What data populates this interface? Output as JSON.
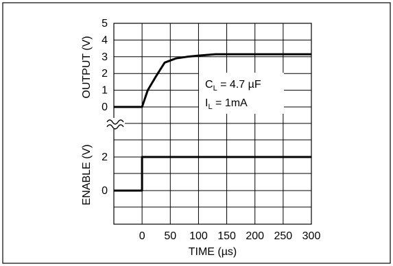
{
  "chart_data": {
    "type": "line",
    "xlabel": "TIME (µs)",
    "x_ticks": [
      "0",
      "50",
      "100",
      "150",
      "200",
      "250",
      "300"
    ],
    "xlim": [
      -50,
      300
    ],
    "panels": [
      {
        "ylabel": "OUTPUT (V)",
        "y_ticks": [
          "5",
          "4",
          "3",
          "2",
          "1",
          "0"
        ],
        "ylim": [
          0,
          5
        ],
        "series": [
          {
            "x": [
              -50,
              0,
              10,
              25,
              40,
              60,
              80,
              100,
              130,
              300
            ],
            "y": [
              0,
              0,
              1.0,
              1.85,
              2.65,
              2.9,
              3.0,
              3.07,
              3.15,
              3.15
            ]
          }
        ],
        "annotations": {
          "cl_main": "C",
          "cl_sub": "L",
          "cl_rest": " = 4.7 µF",
          "il_main": "I",
          "il_sub": "L",
          "il_rest": " = 1mA"
        }
      },
      {
        "ylabel": "ENABLE (V)",
        "y_ticks": [
          "2",
          "0"
        ],
        "series": [
          {
            "x": [
              -50,
              0,
              0,
              300
            ],
            "y": [
              0,
              0,
              2,
              2
            ]
          }
        ]
      }
    ],
    "grid": true,
    "axis_break": true
  }
}
